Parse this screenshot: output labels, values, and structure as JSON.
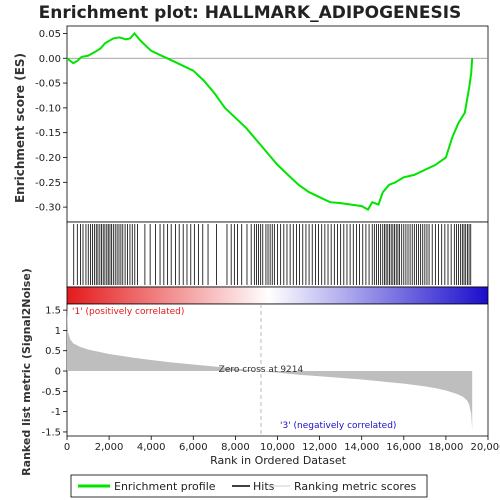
{
  "chart_data": {
    "type": "line",
    "title": "Enrichment plot: HALLMARK_ADIPOGENESIS",
    "top_panel": {
      "ylabel": "Enrichment score (ES)",
      "yticks": [
        "0.05",
        "0.00",
        "-0.05",
        "-0.10",
        "-0.15",
        "-0.20",
        "-0.25",
        "-0.30"
      ],
      "ylim": [
        -0.33,
        0.065
      ],
      "es_profile": {
        "rank": [
          0,
          300,
          500,
          700,
          1000,
          1300,
          1600,
          1800,
          2000,
          2200,
          2500,
          2800,
          3000,
          3200,
          3500,
          4000,
          4500,
          5000,
          5500,
          6000,
          6500,
          7000,
          7500,
          8000,
          8500,
          9000,
          9500,
          10000,
          10500,
          11000,
          11500,
          12000,
          12500,
          13000,
          13500,
          14000,
          14300,
          14500,
          14800,
          15000,
          15300,
          15600,
          16000,
          16500,
          17000,
          17500,
          18000,
          18300,
          18600,
          18900,
          19100,
          19200,
          19250
        ],
        "es": [
          0.0,
          -0.01,
          -0.005,
          0.003,
          0.005,
          0.012,
          0.02,
          0.03,
          0.035,
          0.04,
          0.042,
          0.038,
          0.04,
          0.05,
          0.035,
          0.015,
          0.005,
          -0.005,
          -0.015,
          -0.025,
          -0.045,
          -0.07,
          -0.1,
          -0.12,
          -0.14,
          -0.165,
          -0.19,
          -0.215,
          -0.235,
          -0.255,
          -0.27,
          -0.28,
          -0.29,
          -0.292,
          -0.295,
          -0.298,
          -0.305,
          -0.29,
          -0.295,
          -0.27,
          -0.255,
          -0.25,
          -0.24,
          -0.235,
          -0.225,
          -0.215,
          -0.2,
          -0.16,
          -0.13,
          -0.11,
          -0.06,
          -0.03,
          0.0
        ]
      }
    },
    "hits_panel": {
      "hit_ranks": [
        320,
        490,
        640,
        760,
        900,
        1010,
        1120,
        1210,
        1300,
        1390,
        1470,
        1560,
        1640,
        1720,
        1800,
        1890,
        1960,
        2040,
        2120,
        2200,
        2290,
        2380,
        2470,
        2560,
        2650,
        2760,
        2870,
        2990,
        3100,
        3220,
        3350,
        3700,
        3950,
        4200,
        4420,
        4600,
        4780,
        4950,
        5150,
        5330,
        5520,
        5700,
        5880,
        6050,
        6250,
        6450,
        6700,
        7100,
        7600,
        7800,
        7950,
        8100,
        8300,
        8550,
        8750,
        8900,
        9000,
        9100,
        9200,
        9300,
        9450,
        9550,
        9650,
        9750,
        9850,
        10000,
        10150,
        10300,
        10450,
        10600,
        10750,
        10900,
        11050,
        11200,
        11350,
        11500,
        11650,
        11800,
        11950,
        12100,
        12250,
        12400,
        12550,
        12700,
        12850,
        13000,
        13150,
        13300,
        13450,
        13600,
        13750,
        13900,
        14050,
        14200,
        14350,
        14500,
        14600,
        14700,
        14800,
        14900,
        15000,
        15080,
        15160,
        15240,
        15320,
        15400,
        15480,
        15560,
        15640,
        15720,
        15800,
        15900,
        16000,
        16100,
        16200,
        16300,
        16400,
        16500,
        16600,
        16700,
        16800,
        16900,
        17000,
        17100,
        17200,
        17350,
        17500,
        17650,
        17800,
        17950,
        18100,
        18250,
        18400,
        18500,
        18600,
        18700,
        18780,
        18860,
        18940,
        19020,
        19100,
        19180
      ],
      "gradient_left_color": "#e41a1c",
      "gradient_mid_color": "#ffffff",
      "gradient_right_color": "#1a0dcc"
    },
    "bottom_panel": {
      "ylabel": "Ranked list metric (Signal2Noise)",
      "yticks": [
        "1.5",
        "1",
        "0.5",
        "0",
        "-0.5",
        "-1",
        "-1.5"
      ],
      "ylim": [
        -1.6,
        1.65
      ],
      "metric_curve": {
        "rank": [
          0,
          50,
          150,
          300,
          600,
          1000,
          2000,
          3000,
          4000,
          5000,
          6000,
          7000,
          8000,
          9214,
          10000,
          11000,
          12000,
          13000,
          14000,
          15000,
          16000,
          17000,
          17500,
          18000,
          18500,
          18800,
          19000,
          19100,
          19200,
          19250
        ],
        "metric": [
          1.55,
          0.95,
          0.78,
          0.68,
          0.6,
          0.53,
          0.42,
          0.34,
          0.27,
          0.21,
          0.16,
          0.11,
          0.06,
          0.0,
          -0.04,
          -0.09,
          -0.13,
          -0.17,
          -0.21,
          -0.26,
          -0.31,
          -0.38,
          -0.42,
          -0.48,
          -0.56,
          -0.63,
          -0.72,
          -0.82,
          -1.05,
          -1.45
        ]
      },
      "label_pos": "'1' (positively correlated)",
      "label_neg": "'3' (negatively correlated)",
      "zero_cross": "Zero cross at 9214",
      "zero_cross_rank": 9214
    },
    "xlabel": "Rank in Ordered Dataset",
    "xticks": [
      "0",
      "2,000",
      "4,000",
      "6,000",
      "8,000",
      "10,000",
      "12,000",
      "14,000",
      "16,000",
      "18,000",
      "20,000"
    ],
    "xlim": [
      0,
      20000
    ],
    "legend": {
      "placement": "bottom",
      "items": [
        "Enrichment profile",
        "Hits",
        "Ranking metric scores"
      ]
    },
    "colors": {
      "es_line": "#00e400",
      "hit_line": "#000000",
      "metric_fill": "#bebebe",
      "pos_label": "#e41a1c",
      "neg_label": "#1a0dcc"
    }
  }
}
